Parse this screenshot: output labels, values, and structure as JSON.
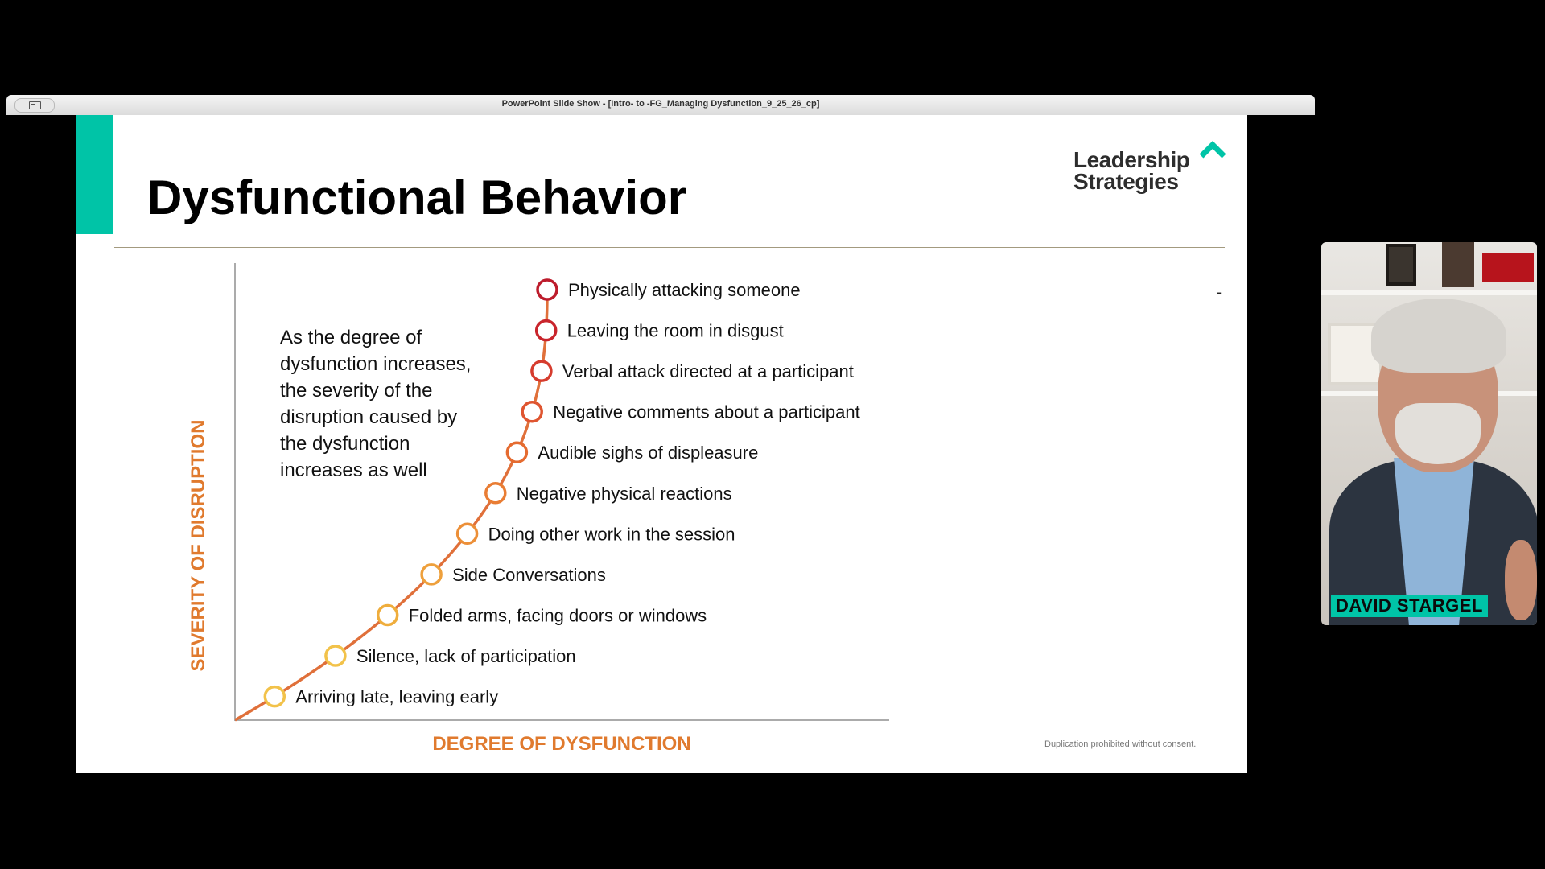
{
  "window": {
    "title": "PowerPoint Slide Show - [Intro- to -FG_Managing Dysfunction_9_25_26_cp]"
  },
  "slide": {
    "title": "Dysfunctional Behavior",
    "logo": {
      "text": "Leadership\nStrategies",
      "accent_color": "#00c4a7"
    },
    "caption": "As the degree of\ndysfunction increases,\nthe severity of the\ndisruption caused by\nthe dysfunction\nincreases as well",
    "footer_note": "Duplication prohibited without consent.",
    "minor_mark": "-"
  },
  "chart_data": {
    "type": "scatter",
    "xlabel": "DEGREE OF DYSFUNCTION",
    "ylabel": "SEVERITY OF DISRUPTION",
    "axis_label_color": "#e07a2e",
    "curve_color": "#e0703a",
    "points": [
      {
        "label": "Arriving late, leaving early",
        "rank": 1,
        "color": "#f2c24a"
      },
      {
        "label": "Silence, lack of participation",
        "rank": 2,
        "color": "#f2c24a"
      },
      {
        "label": "Folded arms, facing doors or windows",
        "rank": 3,
        "color": "#efad3c"
      },
      {
        "label": "Side Conversations",
        "rank": 4,
        "color": "#eea03c"
      },
      {
        "label": "Doing other work in the session",
        "rank": 5,
        "color": "#ec8f38"
      },
      {
        "label": "Negative physical reactions",
        "rank": 6,
        "color": "#e97d34"
      },
      {
        "label": "Audible sighs of displeasure",
        "rank": 7,
        "color": "#e56b30"
      },
      {
        "label": "Negative comments about a participant",
        "rank": 8,
        "color": "#df5530"
      },
      {
        "label": "Verbal attack directed at a participant",
        "rank": 9,
        "color": "#d63c2e"
      },
      {
        "label": "Leaving the room in disgust",
        "rank": 10,
        "color": "#c9252c"
      },
      {
        "label": "Physically attacking someone",
        "rank": 11,
        "color": "#bd1c2c"
      }
    ]
  },
  "participant": {
    "name": "DAVID STARGEL"
  }
}
